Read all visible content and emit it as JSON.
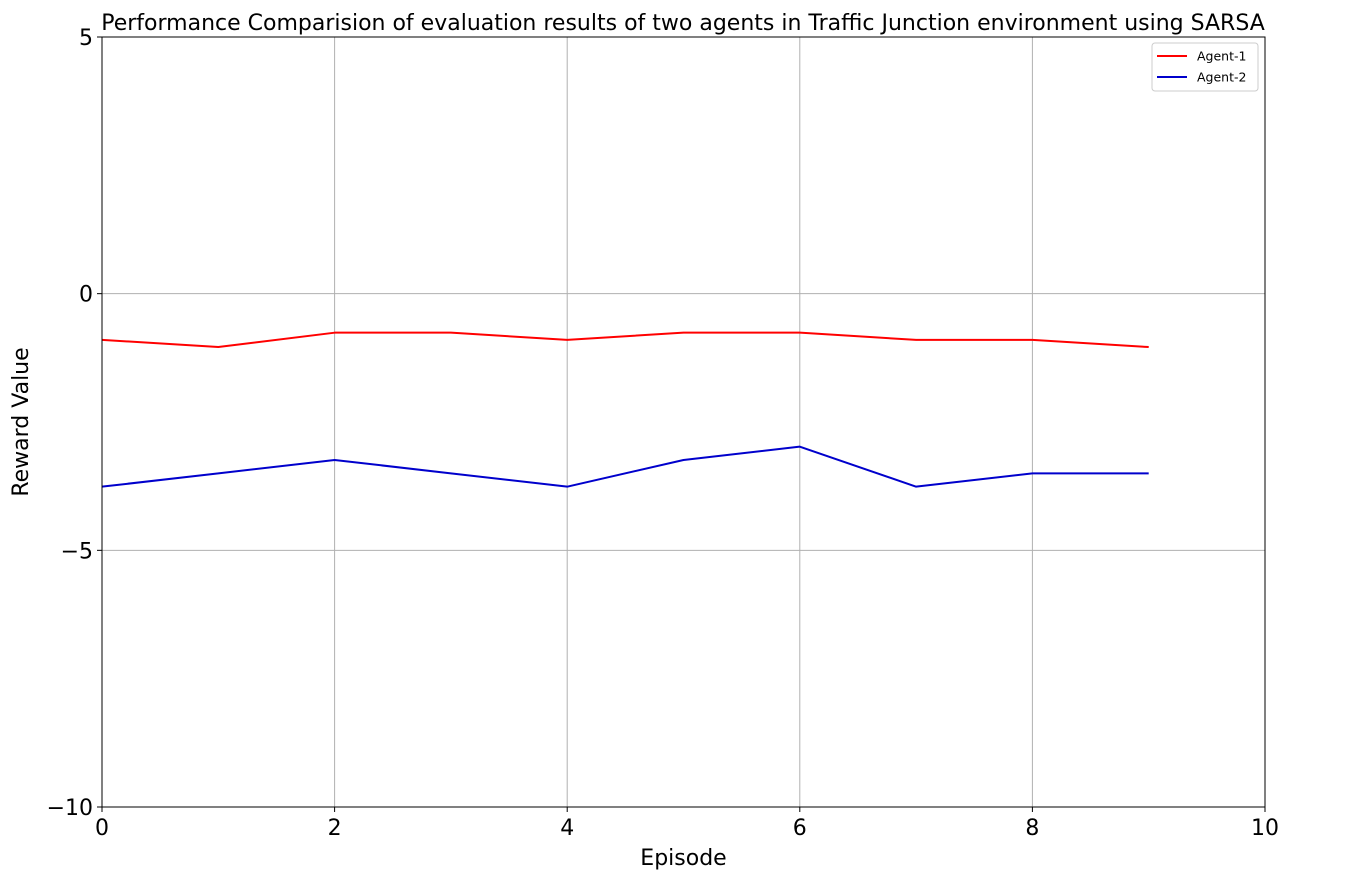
{
  "chart_data": {
    "type": "line",
    "title": "Performance Comparision of evaluation results of two agents in Traffic Junction environment using SARSA",
    "xlabel": "Episode",
    "ylabel": "Reward Value",
    "xlim": [
      0,
      10
    ],
    "ylim": [
      -10,
      5
    ],
    "xticks": [
      0,
      2,
      4,
      6,
      8,
      10
    ],
    "xtick_labels": [
      "0",
      "2",
      "4",
      "6",
      "8",
      "10"
    ],
    "yticks": [
      -10,
      -5,
      0,
      5
    ],
    "ytick_labels": [
      "−10",
      "−5",
      "0",
      "5"
    ],
    "grid": true,
    "legend_position": "top-right",
    "x": [
      0,
      1,
      2,
      3,
      4,
      5,
      6,
      7,
      8,
      9
    ],
    "series": [
      {
        "name": "Agent-1",
        "color": "#ff0000",
        "values": [
          -0.9,
          -1.04,
          -0.76,
          -0.76,
          -0.9,
          -0.76,
          -0.76,
          -0.9,
          -0.9,
          -1.04
        ]
      },
      {
        "name": "Agent-2",
        "color": "#0000cc",
        "values": [
          -3.76,
          -3.5,
          -3.24,
          -3.5,
          -3.76,
          -3.24,
          -2.98,
          -3.76,
          -3.5,
          -3.5
        ]
      }
    ]
  }
}
